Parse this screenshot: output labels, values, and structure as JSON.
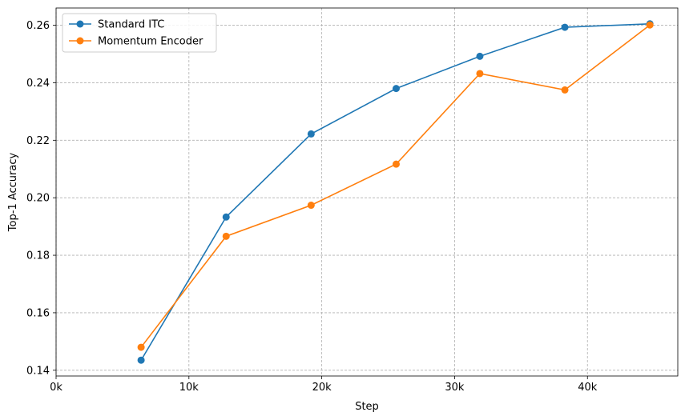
{
  "chart_data": {
    "type": "line",
    "xlabel": "Step",
    "ylabel": "Top-1 Accuracy",
    "xlim": [
      0,
      46800
    ],
    "ylim": [
      0.138,
      0.266
    ],
    "xticks": [
      0,
      10000,
      20000,
      30000,
      40000
    ],
    "xtick_labels": [
      "0k",
      "10k",
      "20k",
      "30k",
      "40k"
    ],
    "yticks": [
      0.14,
      0.16,
      0.18,
      0.2,
      0.22,
      0.24,
      0.26
    ],
    "ytick_labels": [
      "0.14",
      "0.16",
      "0.18",
      "0.20",
      "0.22",
      "0.24",
      "0.26"
    ],
    "grid": true,
    "legend_position": "top-left",
    "series": [
      {
        "name": "Standard ITC",
        "color": "#1f77b4",
        "x": [
          6400,
          12800,
          19200,
          25600,
          31900,
          38300,
          44700
        ],
        "y": [
          0.1435,
          0.1933,
          0.2222,
          0.238,
          0.2492,
          0.2593,
          0.2605
        ]
      },
      {
        "name": "Momentum Encoder",
        "color": "#ff7f0e",
        "x": [
          6400,
          12800,
          19200,
          25600,
          31900,
          38300,
          44700
        ],
        "y": [
          0.148,
          0.1866,
          0.1974,
          0.2117,
          0.2432,
          0.2375,
          0.2601
        ]
      }
    ]
  }
}
